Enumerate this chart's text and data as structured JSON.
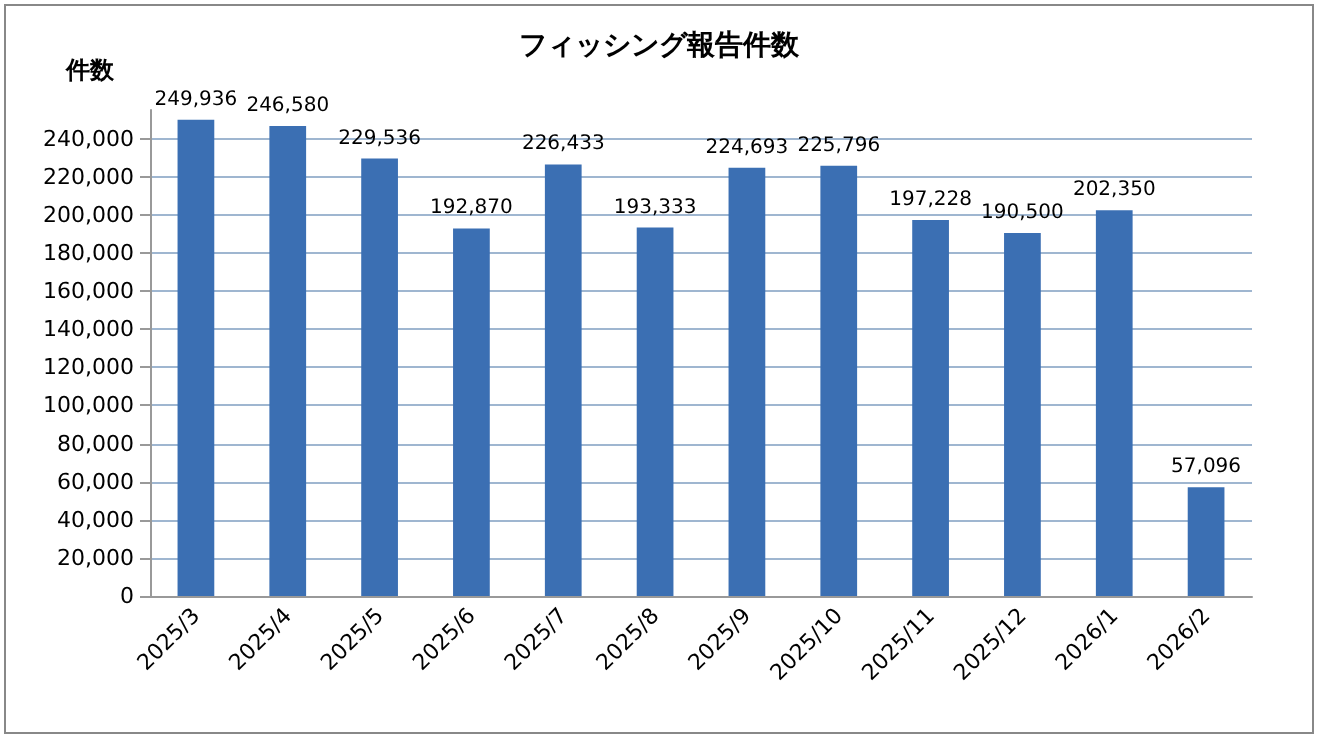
{
  "chart_data": {
    "type": "bar",
    "title": "フィッシング報告件数",
    "ylabel": "件数",
    "categories": [
      "2025/3",
      "2025/4",
      "2025/5",
      "2025/6",
      "2025/7",
      "2025/8",
      "2025/9",
      "2025/10",
      "2025/11",
      "2025/12",
      "2026/1",
      "2026/2"
    ],
    "values": [
      249936,
      246580,
      229536,
      192870,
      226433,
      193333,
      224693,
      225796,
      197228,
      190500,
      202350,
      57096
    ],
    "value_labels": [
      "249,936",
      "246,580",
      "229,536",
      "192,870",
      "226,433",
      "193,333",
      "224,693",
      "225,796",
      "197,228",
      "190,500",
      "202,350",
      "57,096"
    ],
    "color": "#3b6fb3",
    "ylim": [
      0,
      255000
    ],
    "yticks": [
      {
        "value": 0,
        "label": "0"
      },
      {
        "value": 20000,
        "label": "20,000"
      },
      {
        "value": 40000,
        "label": "40,000"
      },
      {
        "value": 60000,
        "label": "60,000"
      },
      {
        "value": 80000,
        "label": "80,000"
      },
      {
        "value": 100000,
        "label": "100,000"
      },
      {
        "value": 120000,
        "label": "120,000"
      },
      {
        "value": 140000,
        "label": "140,000"
      },
      {
        "value": 160000,
        "label": "160,000"
      },
      {
        "value": 180000,
        "label": "180,000"
      },
      {
        "value": 200000,
        "label": "200,000"
      },
      {
        "value": 220000,
        "label": "220,000"
      },
      {
        "value": 240000,
        "label": "240,000"
      }
    ],
    "grid": "y"
  }
}
